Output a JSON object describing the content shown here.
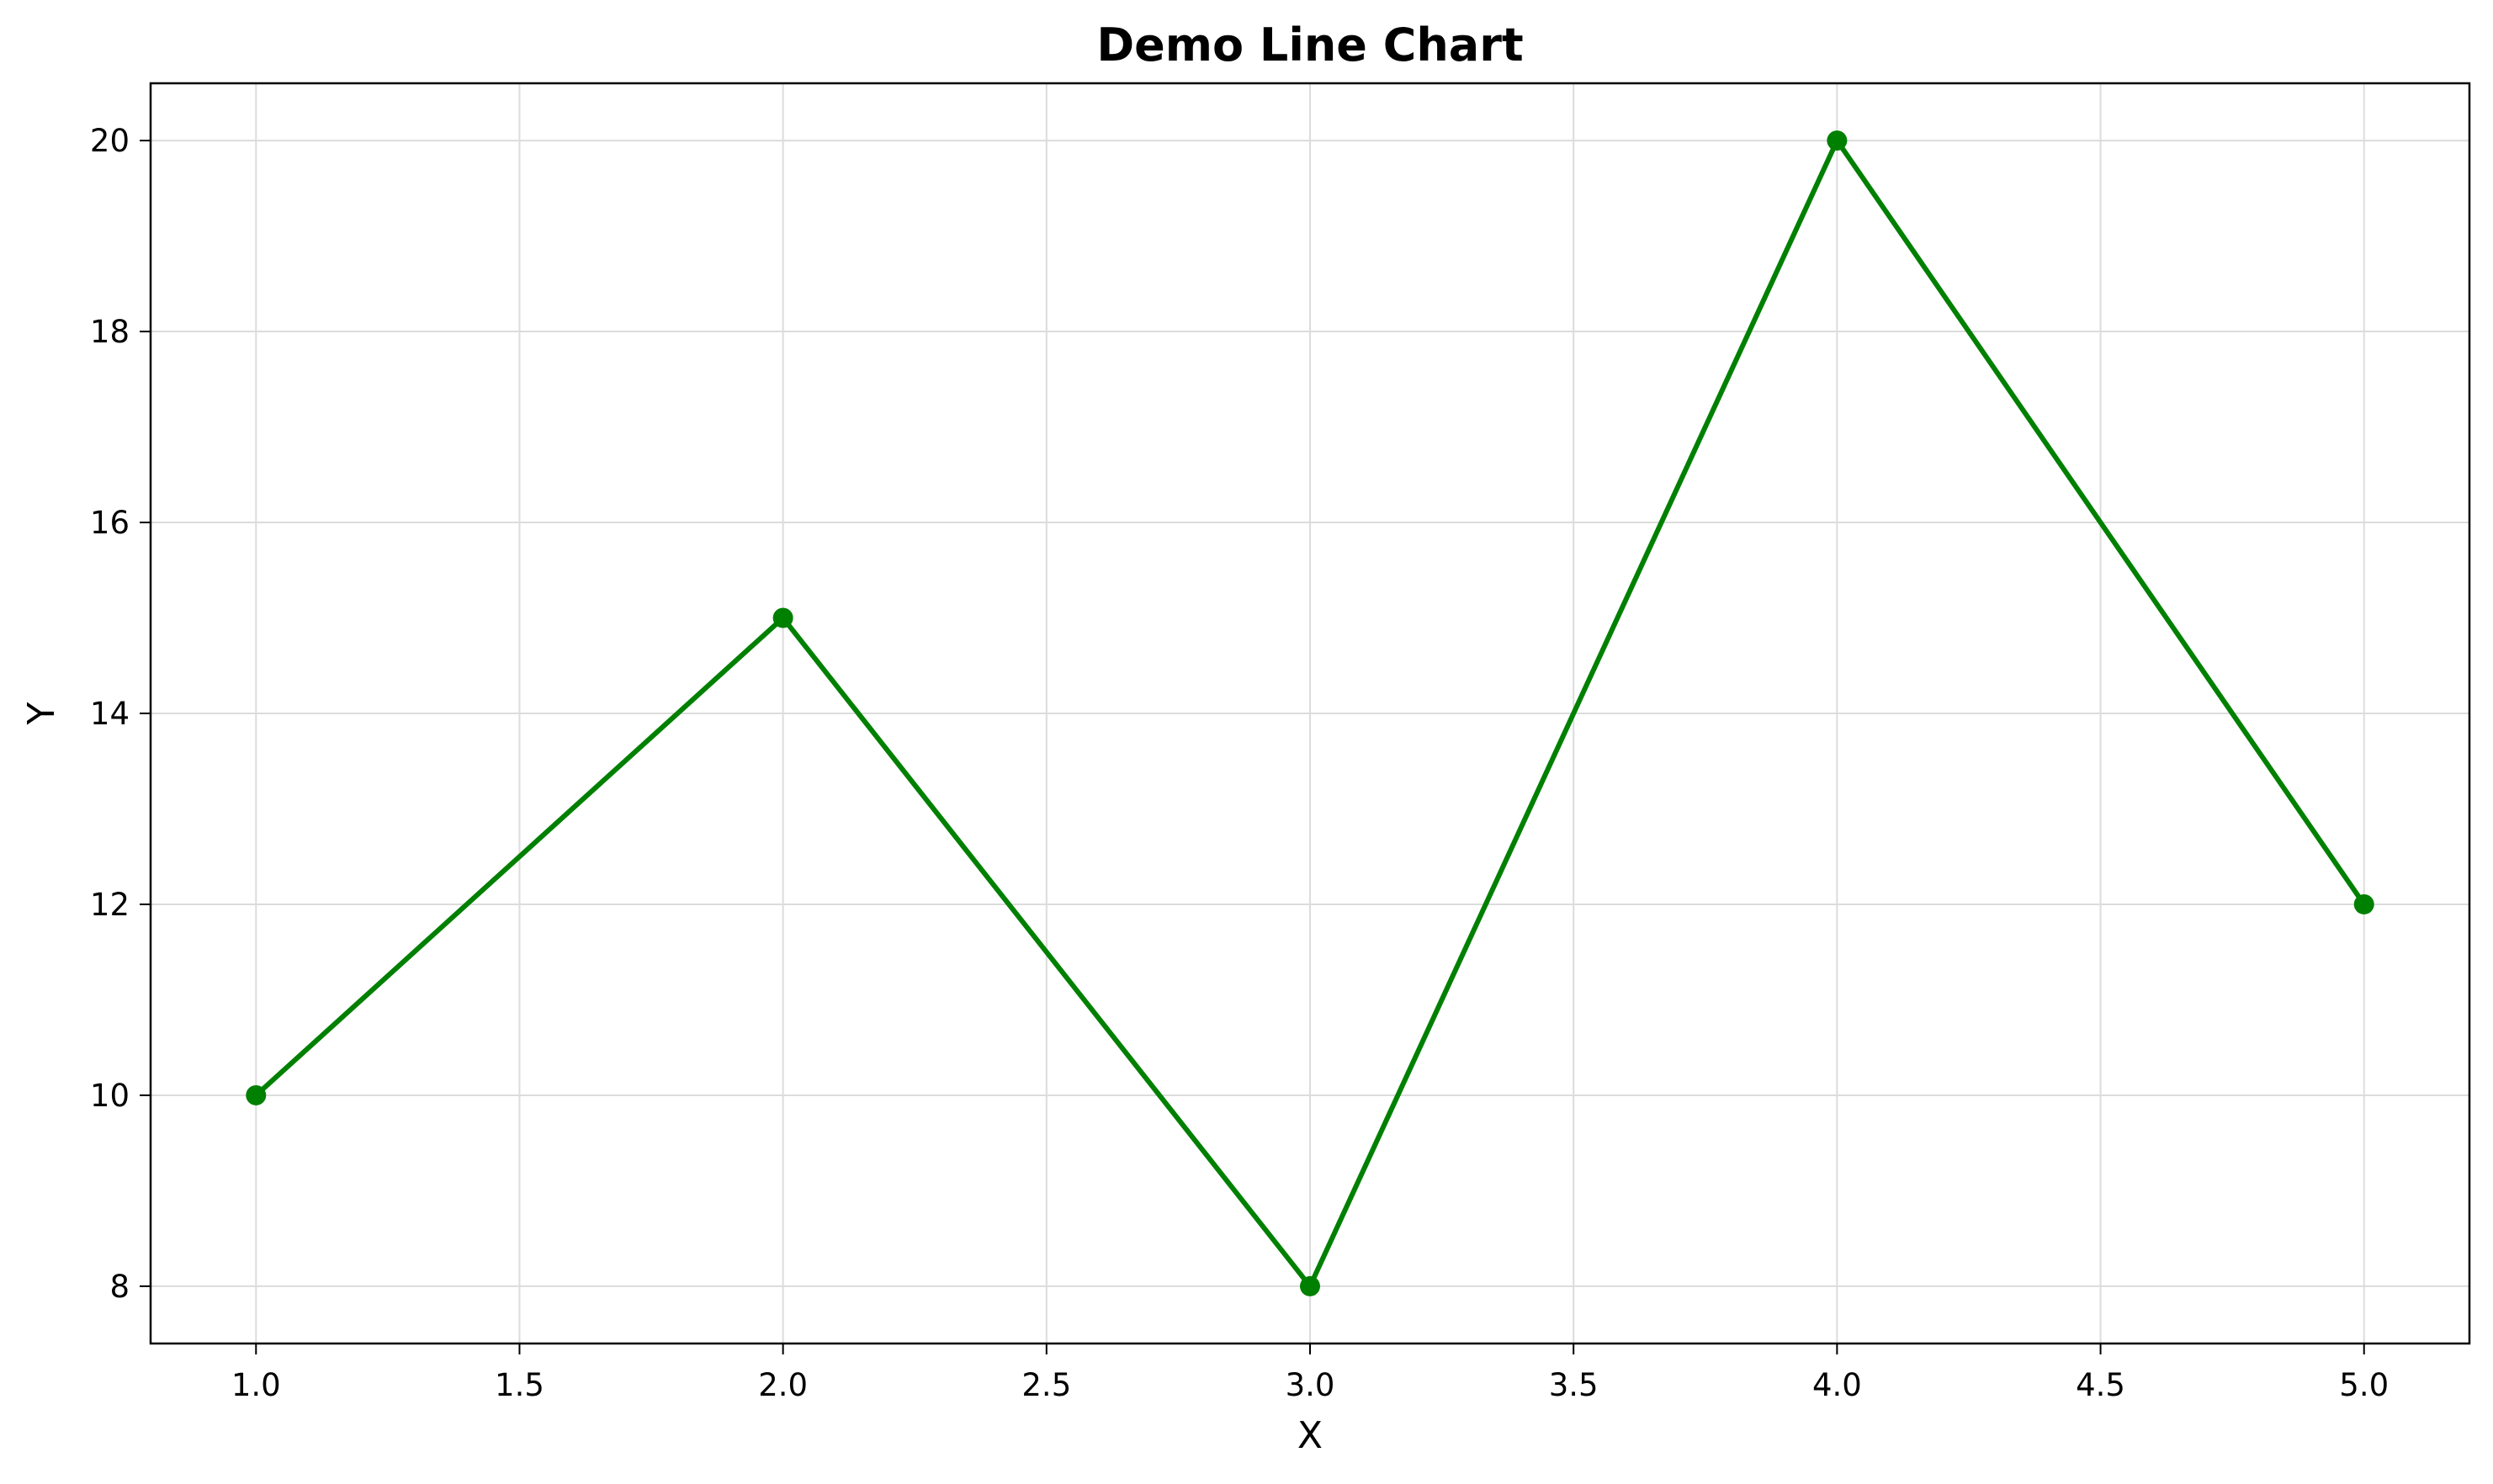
{
  "chart_data": {
    "type": "line",
    "title": "Demo Line Chart",
    "xlabel": "X",
    "ylabel": "Y",
    "x": [
      1,
      2,
      3,
      4,
      5
    ],
    "series": [
      {
        "values": [
          10,
          15,
          8,
          20,
          12
        ],
        "color": "#008000",
        "marker": "circle"
      }
    ],
    "xlim": [
      0.8,
      5.2
    ],
    "ylim": [
      7.4,
      20.6
    ],
    "xticks": [
      1.0,
      1.5,
      2.0,
      2.5,
      3.0,
      3.5,
      4.0,
      4.5,
      5.0
    ],
    "xtick_labels": [
      "1.0",
      "1.5",
      "2.0",
      "2.5",
      "3.0",
      "3.5",
      "4.0",
      "4.5",
      "5.0"
    ],
    "yticks": [
      8,
      10,
      12,
      14,
      16,
      18,
      20
    ],
    "ytick_labels": [
      "8",
      "10",
      "12",
      "14",
      "16",
      "18",
      "20"
    ],
    "grid": true,
    "legend": "none"
  }
}
